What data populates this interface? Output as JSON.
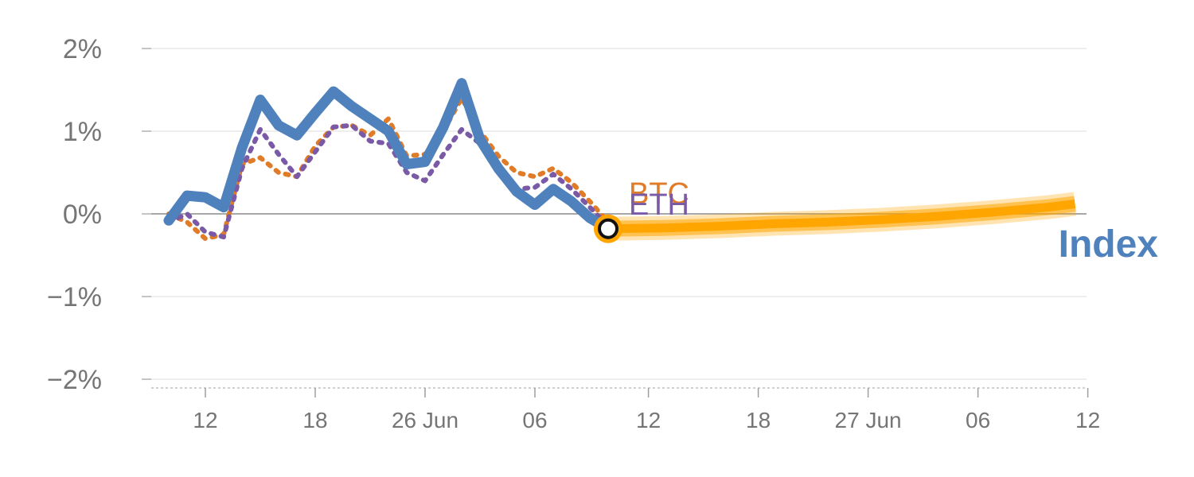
{
  "chart_data": {
    "type": "line",
    "colors": {
      "index": "#4f81bd",
      "btc": "#e07b28",
      "eth": "#7a5aa6",
      "forecast": "#ffa500"
    },
    "y_ticks": [
      {
        "value": 2,
        "label": "2%"
      },
      {
        "value": 1,
        "label": "1%"
      },
      {
        "value": 0,
        "label": "0%"
      },
      {
        "value": -1,
        "label": "−1%"
      },
      {
        "value": -2,
        "label": "−2%"
      }
    ],
    "ylim": [
      -2.1,
      2.1
    ],
    "x_ticks": [
      {
        "x": 2,
        "label": "12"
      },
      {
        "x": 8,
        "label": "18"
      },
      {
        "x": 14,
        "label": "26 Jun"
      },
      {
        "x": 20,
        "label": "06"
      },
      {
        "x": 26.2,
        "label": "12"
      },
      {
        "x": 32.2,
        "label": "18"
      },
      {
        "x": 38.2,
        "label": "27 Jun"
      },
      {
        "x": 44.2,
        "label": "06"
      },
      {
        "x": 50.2,
        "label": "12"
      }
    ],
    "xlim": [
      -1,
      50.5
    ],
    "series": [
      {
        "name": "Index",
        "key": "index",
        "style": "solid",
        "x": [
          0,
          1,
          2,
          3,
          4,
          5,
          6,
          7,
          8,
          9,
          10,
          11,
          12,
          13,
          14,
          15,
          16,
          17,
          18,
          19,
          20,
          21,
          22,
          23,
          24
        ],
        "y": [
          -0.08,
          0.22,
          0.2,
          0.08,
          0.8,
          1.38,
          1.07,
          0.95,
          1.22,
          1.48,
          1.3,
          1.15,
          1.0,
          0.6,
          0.63,
          1.05,
          1.58,
          0.9,
          0.55,
          0.27,
          0.11,
          0.3,
          0.15,
          -0.05,
          -0.18
        ]
      },
      {
        "name": "BTC",
        "key": "btc",
        "style": "dotted",
        "x": [
          0,
          1,
          2,
          3,
          4,
          5,
          6,
          7,
          8,
          9,
          10,
          11,
          12,
          13,
          14,
          15,
          16,
          17,
          18,
          19,
          20,
          21,
          22,
          23,
          24
        ],
        "y": [
          0.0,
          -0.1,
          -0.3,
          -0.25,
          0.6,
          0.68,
          0.5,
          0.45,
          0.82,
          1.05,
          1.07,
          0.95,
          1.15,
          0.7,
          0.72,
          1.0,
          1.4,
          1.0,
          0.7,
          0.5,
          0.45,
          0.55,
          0.38,
          0.15,
          -0.1
        ]
      },
      {
        "name": "ETH",
        "key": "eth",
        "style": "dotted",
        "x": [
          0,
          1,
          2,
          3,
          4,
          5,
          6,
          7,
          8,
          9,
          10,
          11,
          12,
          13,
          14,
          15,
          16,
          17,
          18,
          19,
          20,
          21,
          22,
          23,
          24
        ],
        "y": [
          -0.1,
          0.0,
          -0.22,
          -0.28,
          0.55,
          1.02,
          0.72,
          0.45,
          0.75,
          1.05,
          1.07,
          0.88,
          0.85,
          0.5,
          0.4,
          0.72,
          1.02,
          0.85,
          0.5,
          0.3,
          0.32,
          0.48,
          0.3,
          0.08,
          -0.15
        ]
      }
    ],
    "forecast": {
      "x": [
        24,
        27,
        30,
        33,
        36,
        39,
        42,
        45,
        48,
        49.5
      ],
      "y": [
        -0.18,
        -0.17,
        -0.15,
        -0.12,
        -0.1,
        -0.07,
        -0.03,
        0.02,
        0.08,
        0.12
      ]
    },
    "end_marker": {
      "x": 24,
      "y": -0.18
    },
    "labels": {
      "btc": "BTC",
      "eth": "ETH",
      "index": "Index"
    }
  }
}
